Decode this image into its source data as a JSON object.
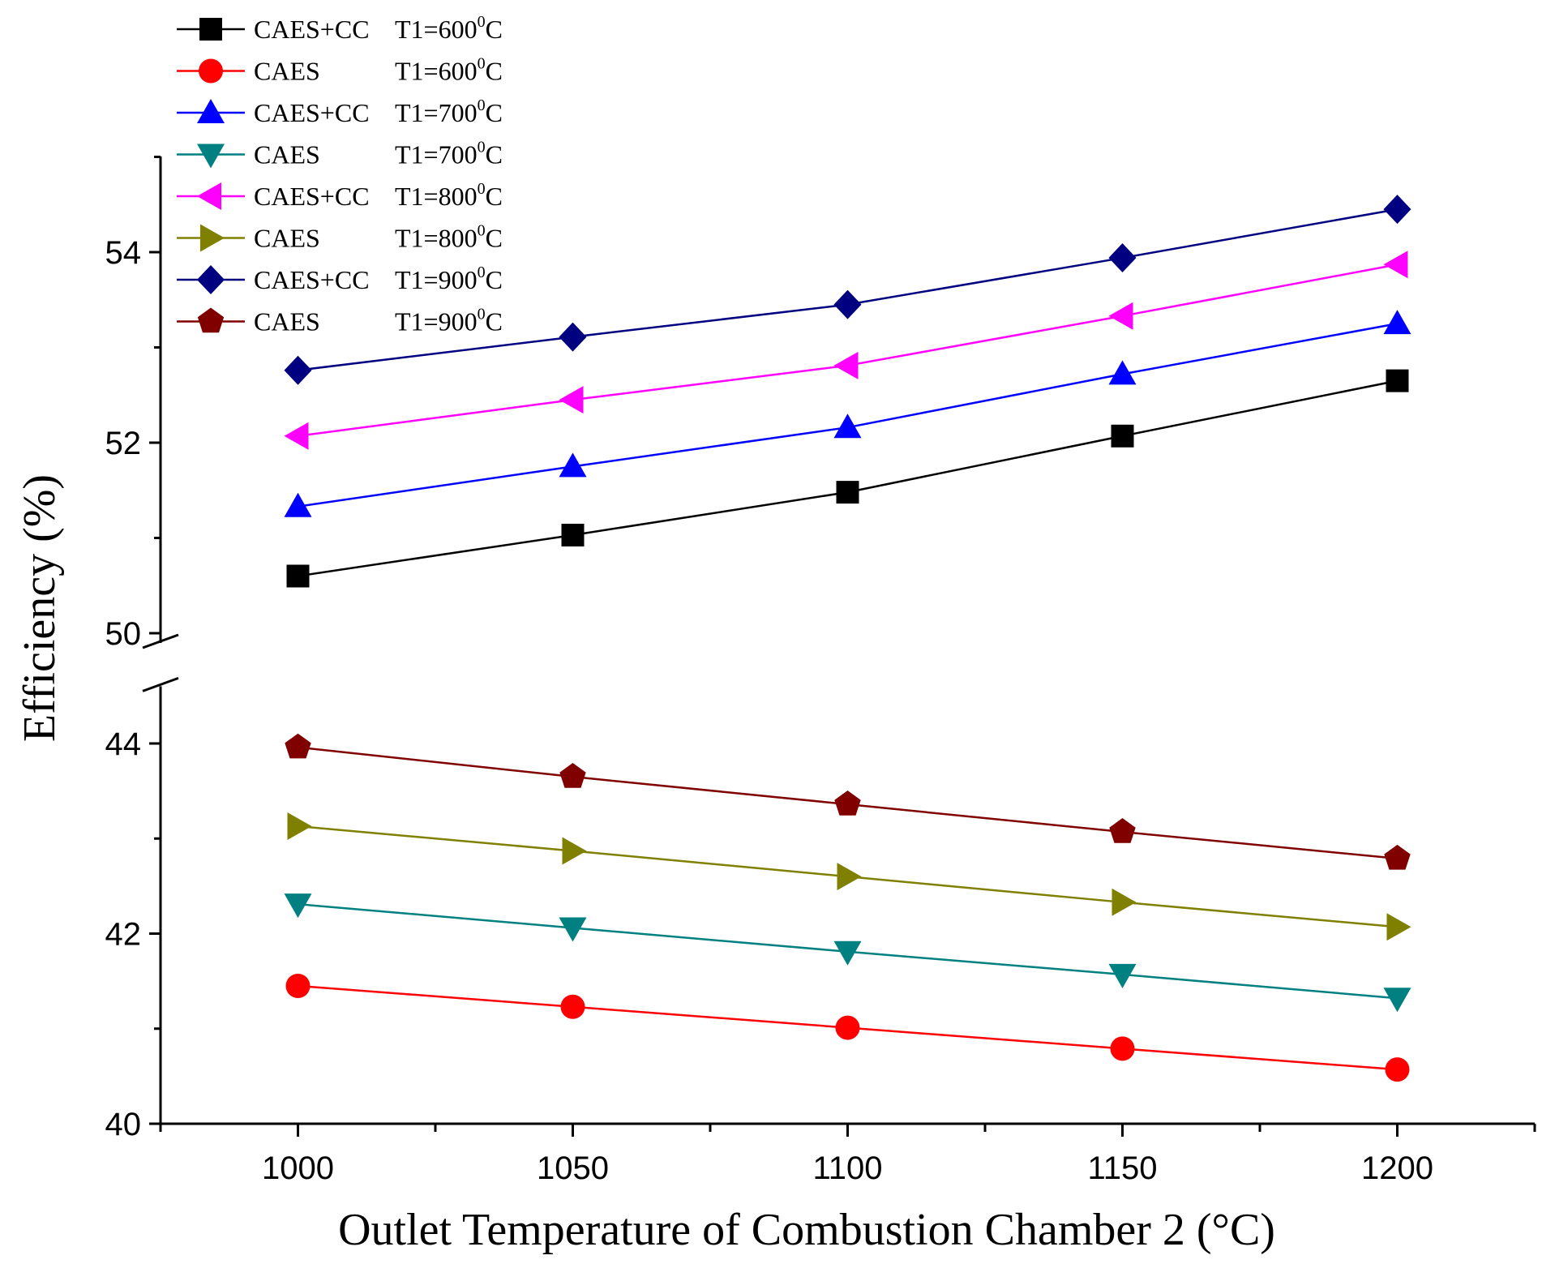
{
  "chart_data": {
    "type": "line",
    "title": "",
    "xlabel": "Outlet Temperature of Combustion Chamber 2 (°C)",
    "ylabel": "Efficiency (%)",
    "x": [
      1000,
      1050,
      1100,
      1150,
      1200
    ],
    "xlim": [
      975,
      1225
    ],
    "x_ticks": [
      1000,
      1050,
      1100,
      1150,
      1200
    ],
    "y_axis_break": {
      "lower": 44.5,
      "upper": 50
    },
    "ylim_lower_segment": [
      40,
      44.5
    ],
    "ylim_upper_segment": [
      50,
      55
    ],
    "y_ticks": [
      40,
      42,
      44,
      50,
      52,
      54
    ],
    "grid": false,
    "legend_position": "top-left",
    "series": [
      {
        "name": "CAES+CC",
        "temp_label": "T1=600",
        "unit_sup": "0",
        "unit": "C",
        "marker": "square",
        "color": "#000000",
        "values": [
          50.6,
          51.03,
          51.48,
          52.07,
          52.65
        ]
      },
      {
        "name": "CAES",
        "temp_label": "T1=600",
        "unit_sup": "0",
        "unit": "C",
        "marker": "circle",
        "color": "#ff0000",
        "values": [
          41.45,
          41.23,
          41.01,
          40.79,
          40.57
        ]
      },
      {
        "name": "CAES+CC",
        "temp_label": "T1=700",
        "unit_sup": "0",
        "unit": "C",
        "marker": "triangle-up",
        "color": "#0000ff",
        "values": [
          51.33,
          51.75,
          52.16,
          52.72,
          53.25
        ]
      },
      {
        "name": "CAES",
        "temp_label": "T1=700",
        "unit_sup": "0",
        "unit": "C",
        "marker": "triangle-down",
        "color": "#008080",
        "values": [
          42.31,
          42.06,
          41.81,
          41.57,
          41.32
        ]
      },
      {
        "name": "CAES+CC",
        "temp_label": "T1=800",
        "unit_sup": "0",
        "unit": "C",
        "marker": "triangle-left",
        "color": "#ff00ff",
        "values": [
          52.07,
          52.45,
          52.81,
          53.33,
          53.87
        ]
      },
      {
        "name": "CAES",
        "temp_label": "T1=800",
        "unit_sup": "0",
        "unit": "C",
        "marker": "triangle-right",
        "color": "#808000",
        "values": [
          43.13,
          42.87,
          42.6,
          42.33,
          42.07
        ]
      },
      {
        "name": "CAES+CC",
        "temp_label": "T1=900",
        "unit_sup": "0",
        "unit": "C",
        "marker": "diamond",
        "color": "#000080",
        "values": [
          52.76,
          53.11,
          53.45,
          53.94,
          54.45
        ]
      },
      {
        "name": "CAES",
        "temp_label": "T1=900",
        "unit_sup": "0",
        "unit": "C",
        "marker": "pentagon",
        "color": "#800000",
        "values": [
          43.96,
          43.65,
          43.36,
          43.07,
          42.79
        ]
      }
    ]
  }
}
